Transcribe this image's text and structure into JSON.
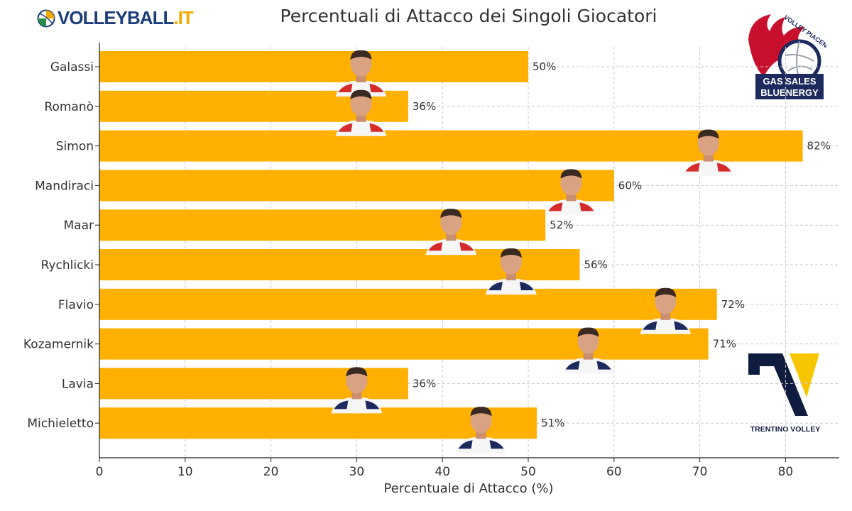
{
  "header": {
    "brand_left": "VOLLEYBALL",
    "brand_left_suffix": ".IT"
  },
  "logos": {
    "piacenza": {
      "line1": "VOLLEY PIACENZA",
      "line2": "GAS SALES",
      "line3": "BLUENERGY"
    },
    "trentino": {
      "text": "TRENTINO VOLLEY"
    }
  },
  "colors": {
    "bar": "#ffb000",
    "piacenza_red": "#c8102e",
    "piacenza_navy": "#1c2a5e",
    "trentino_navy": "#0f1c3f",
    "trentino_yellow": "#f7c600",
    "brand_blue": "#1b3d7a",
    "brand_yellow": "#f2a900"
  },
  "chart_data": {
    "type": "bar",
    "orientation": "horizontal",
    "title": "Percentuali di Attacco dei Singoli Giocatori",
    "xlabel": "Percentuale di Attacco (%)",
    "ylabel": "",
    "xlim": [
      0,
      86
    ],
    "xticks": [
      0,
      10,
      20,
      30,
      40,
      50,
      60,
      70,
      80
    ],
    "grid": true,
    "categories": [
      "Galassi",
      "Romanò",
      "Simon",
      "Mandiraci",
      "Maar",
      "Rychlicki",
      "Flavio",
      "Kozamernik",
      "Lavia",
      "Michieletto"
    ],
    "values": [
      50,
      36,
      82,
      60,
      52,
      56,
      72,
      71,
      36,
      51
    ],
    "value_labels": [
      "50%",
      "36%",
      "82%",
      "60%",
      "52%",
      "56%",
      "72%",
      "71%",
      "36%",
      "51%"
    ],
    "player_photos": [
      {
        "player": "Galassi",
        "team": "piacenza",
        "x": 30.5
      },
      {
        "player": "Romanò",
        "team": "piacenza",
        "x": 30.5
      },
      {
        "player": "Simon",
        "team": "piacenza",
        "x": 71
      },
      {
        "player": "Mandiraci",
        "team": "piacenza",
        "x": 55
      },
      {
        "player": "Maar",
        "team": "piacenza",
        "x": 41
      },
      {
        "player": "Rychlicki",
        "team": "trentino",
        "x": 48
      },
      {
        "player": "Flavio",
        "team": "trentino",
        "x": 66
      },
      {
        "player": "Kozamernik",
        "team": "trentino",
        "x": 57
      },
      {
        "player": "Lavia",
        "team": "trentino",
        "x": 30
      },
      {
        "player": "Michieletto",
        "team": "trentino",
        "x": 44.5
      }
    ]
  }
}
